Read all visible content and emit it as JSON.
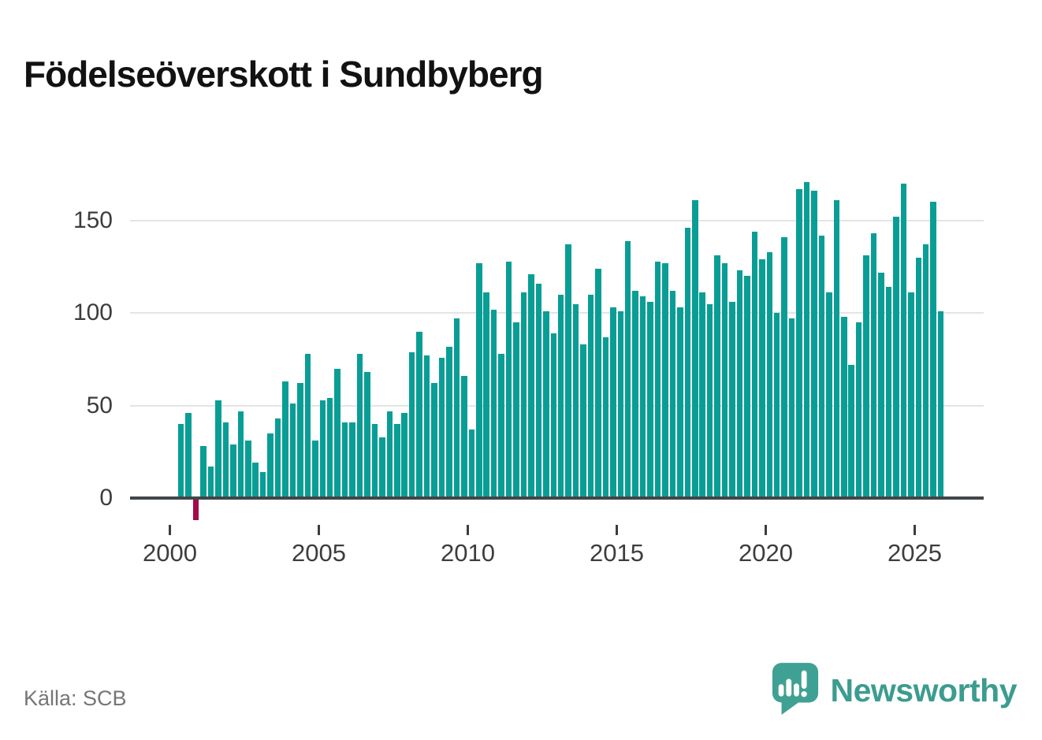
{
  "title": "Födelseöverskott i Sundbyberg",
  "footer": {
    "source": "Källa: SCB"
  },
  "brand": {
    "name": "Newsworthy"
  },
  "colors": {
    "bar_positive": "#089e95",
    "bar_negative": "#a30a4a",
    "axis": "#414649",
    "grid": "#e4e4e4",
    "tick_label": "#3d3d3d",
    "source_text": "#767676",
    "title_text": "#121212",
    "brand_teal": "#3b9c8f"
  },
  "chart_data": {
    "type": "bar",
    "title": "Födelseöverskott i Sundbyberg",
    "x_unit": "quarter",
    "first_period": "2000 Q2",
    "last_period": "2025 Q4",
    "x_ticks": [
      2000,
      2005,
      2010,
      2015,
      2020,
      2025
    ],
    "y_ticks": [
      0,
      50,
      100,
      150
    ],
    "ylim": [
      -15,
      175
    ],
    "grid": true,
    "legend": "none",
    "points": [
      [
        "2000Q2",
        40
      ],
      [
        "2000Q3",
        46
      ],
      [
        "2000Q4",
        -12
      ],
      [
        "2001Q1",
        28
      ],
      [
        "2001Q2",
        17
      ],
      [
        "2001Q3",
        53
      ],
      [
        "2001Q4",
        41
      ],
      [
        "2002Q1",
        29
      ],
      [
        "2002Q2",
        47
      ],
      [
        "2002Q3",
        31
      ],
      [
        "2002Q4",
        19
      ],
      [
        "2003Q1",
        14
      ],
      [
        "2003Q2",
        35
      ],
      [
        "2003Q3",
        43
      ],
      [
        "2003Q4",
        63
      ],
      [
        "2004Q1",
        51
      ],
      [
        "2004Q2",
        62
      ],
      [
        "2004Q3",
        78
      ],
      [
        "2004Q4",
        31
      ],
      [
        "2005Q1",
        53
      ],
      [
        "2005Q2",
        54
      ],
      [
        "2005Q3",
        70
      ],
      [
        "2005Q4",
        41
      ],
      [
        "2006Q1",
        41
      ],
      [
        "2006Q2",
        78
      ],
      [
        "2006Q3",
        68
      ],
      [
        "2006Q4",
        40
      ],
      [
        "2007Q1",
        33
      ],
      [
        "2007Q2",
        47
      ],
      [
        "2007Q3",
        40
      ],
      [
        "2007Q4",
        46
      ],
      [
        "2008Q1",
        79
      ],
      [
        "2008Q2",
        90
      ],
      [
        "2008Q3",
        77
      ],
      [
        "2008Q4",
        62
      ],
      [
        "2009Q1",
        76
      ],
      [
        "2009Q2",
        82
      ],
      [
        "2009Q3",
        97
      ],
      [
        "2009Q4",
        66
      ],
      [
        "2010Q1",
        37
      ],
      [
        "2010Q2",
        127
      ],
      [
        "2010Q3",
        111
      ],
      [
        "2010Q4",
        102
      ],
      [
        "2011Q1",
        78
      ],
      [
        "2011Q2",
        128
      ],
      [
        "2011Q3",
        95
      ],
      [
        "2011Q4",
        111
      ],
      [
        "2012Q1",
        121
      ],
      [
        "2012Q2",
        116
      ],
      [
        "2012Q3",
        101
      ],
      [
        "2012Q4",
        89
      ],
      [
        "2013Q1",
        110
      ],
      [
        "2013Q2",
        137
      ],
      [
        "2013Q3",
        105
      ],
      [
        "2013Q4",
        83
      ],
      [
        "2014Q1",
        110
      ],
      [
        "2014Q2",
        124
      ],
      [
        "2014Q3",
        87
      ],
      [
        "2014Q4",
        103
      ],
      [
        "2015Q1",
        101
      ],
      [
        "2015Q2",
        139
      ],
      [
        "2015Q3",
        112
      ],
      [
        "2015Q4",
        109
      ],
      [
        "2016Q1",
        106
      ],
      [
        "2016Q2",
        128
      ],
      [
        "2016Q3",
        127
      ],
      [
        "2016Q4",
        112
      ],
      [
        "2017Q1",
        103
      ],
      [
        "2017Q2",
        146
      ],
      [
        "2017Q3",
        161
      ],
      [
        "2017Q4",
        111
      ],
      [
        "2018Q1",
        105
      ],
      [
        "2018Q2",
        131
      ],
      [
        "2018Q3",
        127
      ],
      [
        "2018Q4",
        106
      ],
      [
        "2019Q1",
        123
      ],
      [
        "2019Q2",
        120
      ],
      [
        "2019Q3",
        144
      ],
      [
        "2019Q4",
        129
      ],
      [
        "2020Q1",
        133
      ],
      [
        "2020Q2",
        100
      ],
      [
        "2020Q3",
        141
      ],
      [
        "2020Q4",
        97
      ],
      [
        "2021Q1",
        167
      ],
      [
        "2021Q2",
        171
      ],
      [
        "2021Q3",
        166
      ],
      [
        "2021Q4",
        142
      ],
      [
        "2022Q1",
        111
      ],
      [
        "2022Q2",
        161
      ],
      [
        "2022Q3",
        98
      ],
      [
        "2022Q4",
        72
      ],
      [
        "2023Q1",
        95
      ],
      [
        "2023Q2",
        131
      ],
      [
        "2023Q3",
        143
      ],
      [
        "2023Q4",
        122
      ],
      [
        "2024Q1",
        114
      ],
      [
        "2024Q2",
        152
      ],
      [
        "2024Q3",
        170
      ],
      [
        "2024Q4",
        111
      ],
      [
        "2025Q1",
        130
      ],
      [
        "2025Q2",
        137
      ],
      [
        "2025Q3",
        160
      ],
      [
        "2025Q4",
        101
      ]
    ]
  }
}
